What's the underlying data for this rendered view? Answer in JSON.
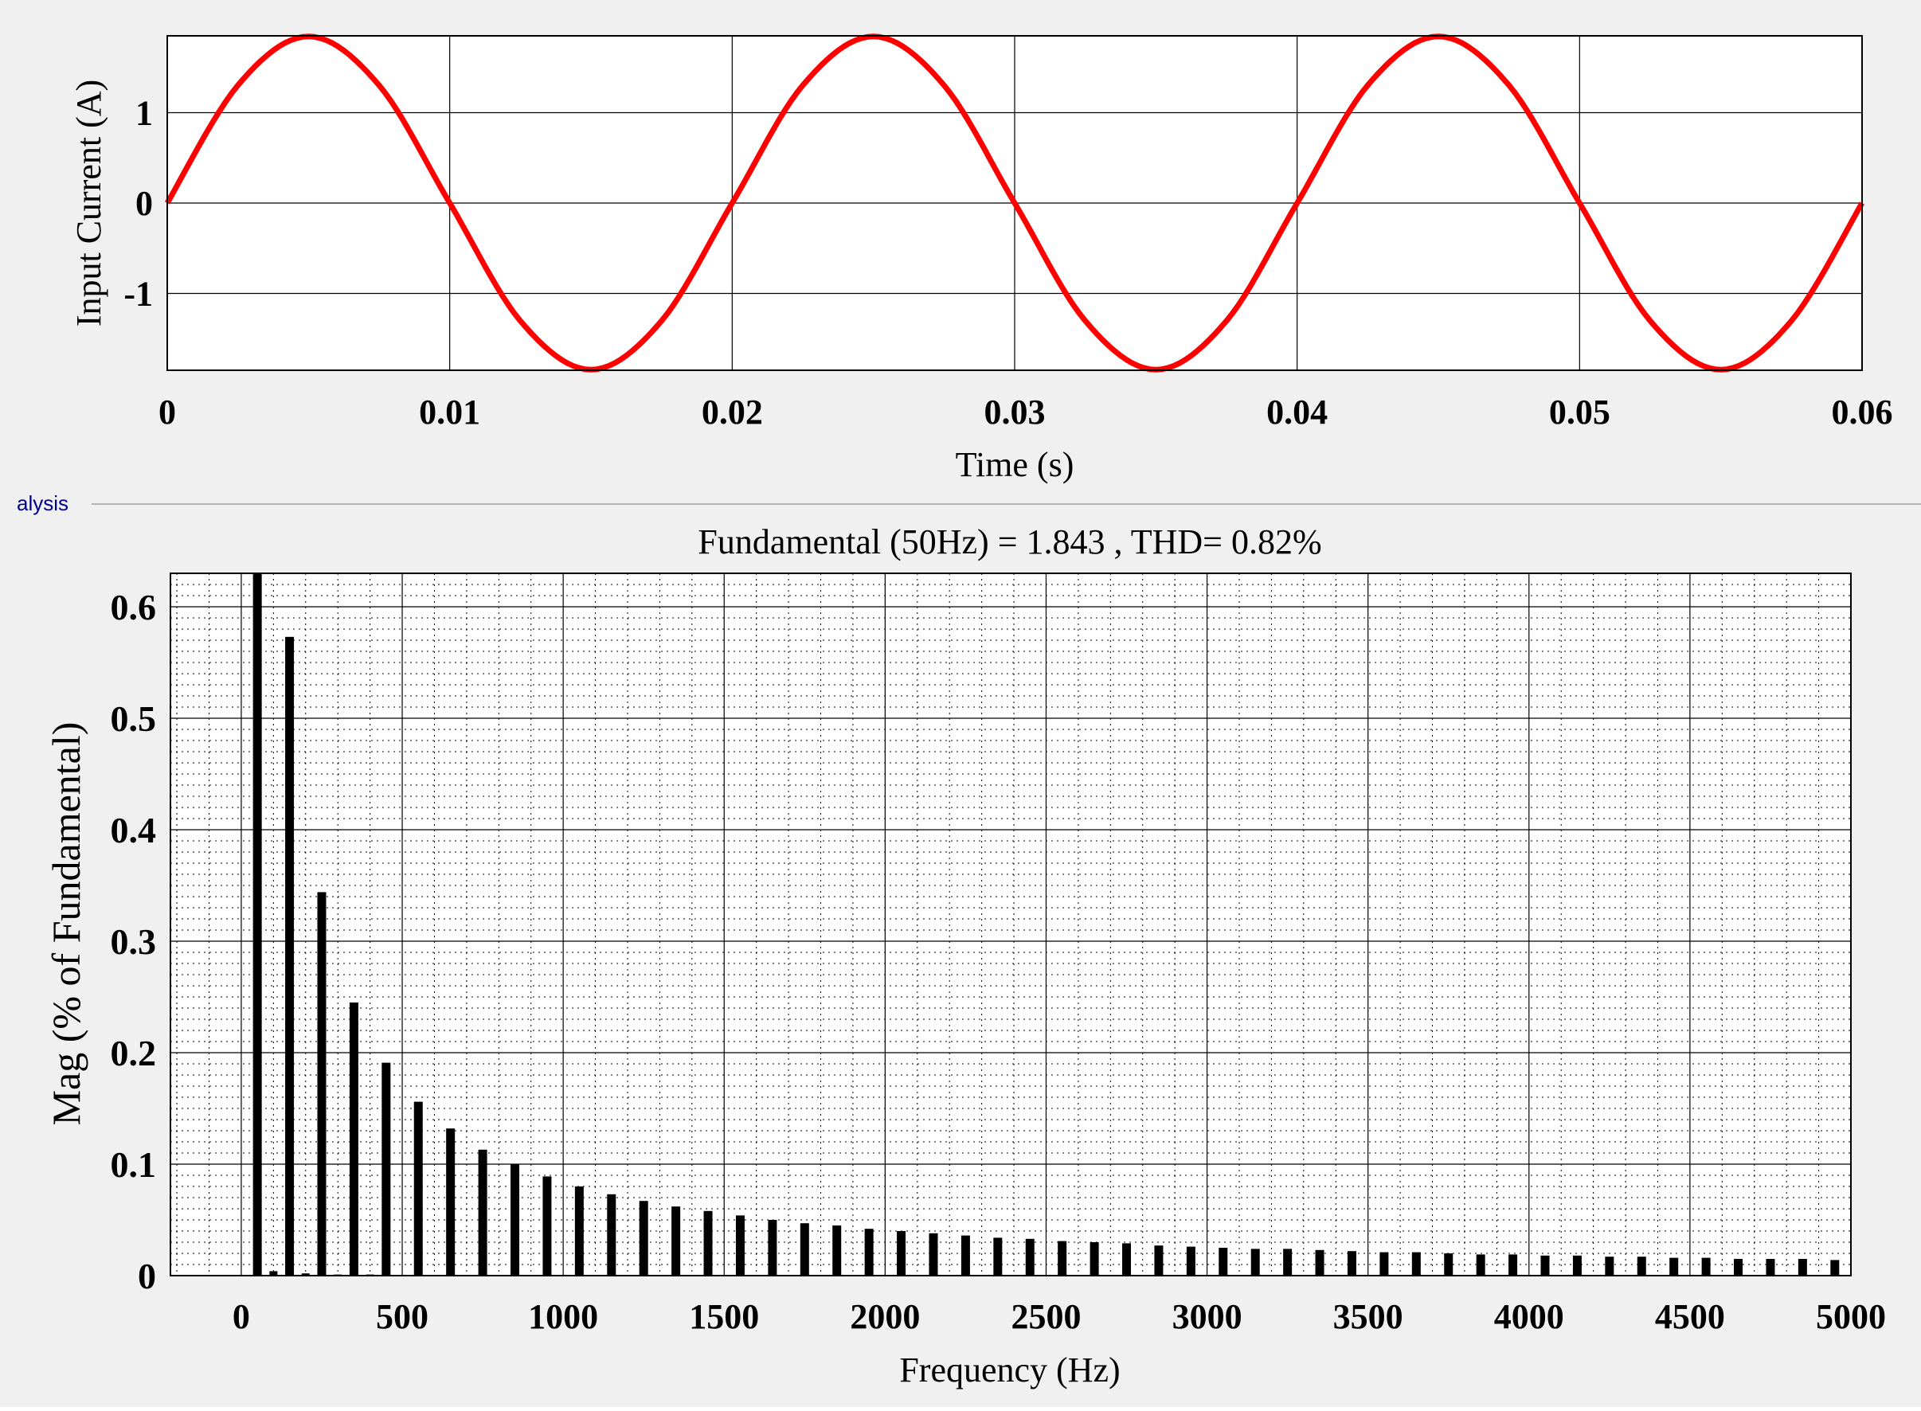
{
  "panel_tab": {
    "label": "alysis"
  },
  "colors": {
    "background": "#f0f0f0",
    "plot_bg": "#ffffff",
    "current_line": "#ff0000",
    "bars": "#000000",
    "grid": "#000000"
  },
  "chart_data": [
    {
      "type": "line",
      "title": "",
      "xlabel": "Time (s)",
      "ylabel": "Input Current (A)",
      "xlim": [
        0,
        0.06
      ],
      "ylim": [
        -1.85,
        1.85
      ],
      "xticks": [
        0,
        0.01,
        0.02,
        0.03,
        0.04,
        0.05,
        0.06
      ],
      "xtick_labels": [
        "0",
        "0.01",
        "0.02",
        "0.03",
        "0.04",
        "0.05",
        "0.06"
      ],
      "yticks": [
        1,
        0,
        -1
      ],
      "ytick_labels": [
        "1",
        "0",
        "-1"
      ],
      "grid": true,
      "series": [
        {
          "x": [
            0,
            0.0025,
            0.005,
            0.0075,
            0.01,
            0.0125,
            0.015,
            0.0175,
            0.02,
            0.0225,
            0.025,
            0.0275,
            0.03,
            0.0325,
            0.035,
            0.0375,
            0.04,
            0.0425,
            0.045,
            0.0475,
            0.05,
            0.0525,
            0.055,
            0.0575,
            0.06
          ],
          "values": [
            0,
            1.303,
            1.843,
            1.303,
            0,
            -1.303,
            -1.843,
            -1.303,
            0,
            1.303,
            1.843,
            1.303,
            0,
            -1.303,
            -1.843,
            -1.303,
            0,
            1.303,
            1.843,
            1.303,
            0,
            -1.303,
            -1.843,
            -1.303,
            0
          ]
        }
      ]
    },
    {
      "type": "bar",
      "title": "Fundamental (50Hz) = 1.843 , THD= 0.82%",
      "xlabel": "Frequency (Hz)",
      "ylabel": "Mag (% of Fundamental)",
      "xlim": [
        -220,
        5000
      ],
      "ylim": [
        0,
        0.63
      ],
      "xticks": [
        0,
        500,
        1000,
        1500,
        2000,
        2500,
        3000,
        3500,
        4000,
        4500,
        5000
      ],
      "xtick_labels": [
        "0",
        "500",
        "1000",
        "1500",
        "2000",
        "2500",
        "3000",
        "3500",
        "4000",
        "4500",
        "5000"
      ],
      "yticks": [
        0,
        0.1,
        0.2,
        0.3,
        0.4,
        0.5,
        0.6
      ],
      "ytick_labels": [
        "0",
        "0.1",
        "0.2",
        "0.3",
        "0.4",
        "0.5",
        "0.6"
      ],
      "grid": true,
      "minor_grid": true,
      "bar_frequencies": [
        50,
        150,
        250,
        350,
        450,
        550,
        650,
        750,
        850,
        950,
        1050,
        1150,
        1250,
        1350,
        1450,
        1550,
        1650,
        1750,
        1850,
        1950,
        2050,
        2150,
        2250,
        2350,
        2450,
        2550,
        2650,
        2750,
        2850,
        2950,
        3050,
        3150,
        3250,
        3350,
        3450,
        3550,
        3650,
        3750,
        3850,
        3950,
        4050,
        4150,
        4250,
        4350,
        4450,
        4550,
        4650,
        4750,
        4850,
        4950
      ],
      "values": [
        0.63,
        0.573,
        0.344,
        0.245,
        0.191,
        0.156,
        0.132,
        0.113,
        0.1,
        0.089,
        0.08,
        0.073,
        0.067,
        0.062,
        0.058,
        0.054,
        0.05,
        0.047,
        0.045,
        0.042,
        0.04,
        0.038,
        0.036,
        0.034,
        0.033,
        0.031,
        0.03,
        0.029,
        0.027,
        0.026,
        0.025,
        0.024,
        0.024,
        0.023,
        0.022,
        0.021,
        0.021,
        0.02,
        0.019,
        0.019,
        0.018,
        0.018,
        0.017,
        0.017,
        0.016,
        0.016,
        0.015,
        0.015,
        0.015,
        0.014
      ],
      "even_harmonic_frequencies": [
        100,
        200,
        300,
        400
      ],
      "even_harmonic_values": [
        0.004,
        0.002,
        0.001,
        0.001
      ]
    }
  ]
}
